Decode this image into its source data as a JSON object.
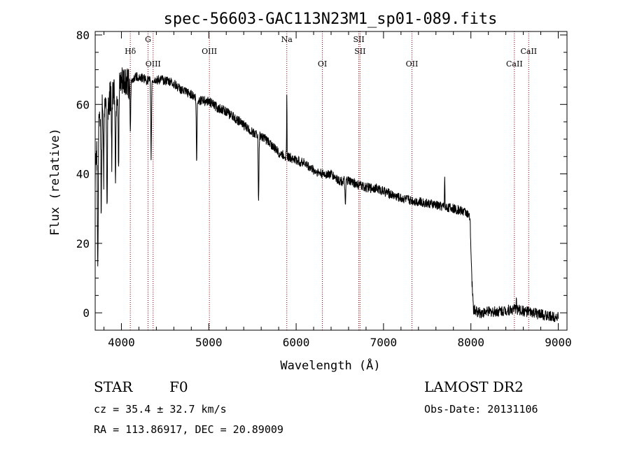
{
  "chart_data": {
    "type": "line",
    "title": "spec-56603-GAC113N23M1_sp01-089.fits",
    "xlabel": "Wavelength (Å)",
    "ylabel": "Flux (relative)",
    "xlim": [
      3700,
      9100
    ],
    "ylim": [
      -5,
      81
    ],
    "xticks": [
      4000,
      5000,
      6000,
      7000,
      8000,
      9000
    ],
    "yticks": [
      0,
      20,
      40,
      60,
      80
    ],
    "grid": false,
    "lines": [
      {
        "label": "Hδ",
        "wavelength": 4102,
        "row": 1
      },
      {
        "label": "G",
        "wavelength": 4305,
        "row": 0
      },
      {
        "label": "OIII",
        "wavelength": 4363,
        "row": 2
      },
      {
        "label": "OIII",
        "wavelength": 5007,
        "row": 1
      },
      {
        "label": "Na",
        "wavelength": 5893,
        "row": 0
      },
      {
        "label": "OI",
        "wavelength": 6300,
        "row": 2
      },
      {
        "label": "SII",
        "wavelength": 6717,
        "row": 0
      },
      {
        "label": "SII",
        "wavelength": 6731,
        "row": 1
      },
      {
        "label": "OII",
        "wavelength": 7325,
        "row": 2
      },
      {
        "label": "CaII",
        "wavelength": 8498,
        "row": 2
      },
      {
        "label": "CaII",
        "wavelength": 8662,
        "row": 1
      }
    ],
    "continuum": [
      [
        3700,
        40
      ],
      [
        3730,
        52
      ],
      [
        3760,
        58
      ],
      [
        3800,
        62
      ],
      [
        3850,
        60
      ],
      [
        3900,
        65
      ],
      [
        3950,
        63
      ],
      [
        4000,
        66
      ],
      [
        4050,
        67
      ],
      [
        4100,
        66
      ],
      [
        4150,
        68
      ],
      [
        4200,
        68
      ],
      [
        4300,
        67
      ],
      [
        4400,
        67
      ],
      [
        4500,
        67
      ],
      [
        4600,
        66
      ],
      [
        4700,
        64
      ],
      [
        4800,
        63
      ],
      [
        4900,
        61
      ],
      [
        5000,
        61
      ],
      [
        5100,
        59
      ],
      [
        5200,
        58
      ],
      [
        5300,
        56
      ],
      [
        5400,
        54
      ],
      [
        5500,
        52
      ],
      [
        5600,
        51
      ],
      [
        5700,
        49
      ],
      [
        5800,
        46
      ],
      [
        5900,
        45
      ],
      [
        6000,
        44
      ],
      [
        6100,
        43
      ],
      [
        6200,
        41
      ],
      [
        6300,
        40
      ],
      [
        6400,
        40
      ],
      [
        6500,
        38
      ],
      [
        6600,
        38
      ],
      [
        6700,
        37
      ],
      [
        6800,
        36
      ],
      [
        6900,
        36
      ],
      [
        7000,
        35
      ],
      [
        7200,
        33
      ],
      [
        7400,
        32
      ],
      [
        7600,
        31
      ],
      [
        7800,
        30
      ],
      [
        7950,
        29
      ],
      [
        7990,
        27
      ],
      [
        8010,
        10
      ],
      [
        8030,
        1
      ],
      [
        8100,
        0
      ],
      [
        8300,
        0.5
      ],
      [
        8500,
        1
      ],
      [
        8700,
        0
      ],
      [
        8900,
        -1
      ],
      [
        9000,
        -1
      ]
    ],
    "absorption": [
      {
        "x": 3730,
        "depth": 40
      },
      {
        "x": 3770,
        "depth": 30
      },
      {
        "x": 3798,
        "depth": 22
      },
      {
        "x": 3835,
        "depth": 30
      },
      {
        "x": 3889,
        "depth": 20
      },
      {
        "x": 3933,
        "depth": 25
      },
      {
        "x": 3968,
        "depth": 22
      },
      {
        "x": 4102,
        "depth": 14
      },
      {
        "x": 4340,
        "depth": 22
      },
      {
        "x": 4861,
        "depth": 18
      },
      {
        "x": 5570,
        "depth": 20
      },
      {
        "x": 6563,
        "depth": 8
      }
    ],
    "emission": [
      {
        "x": 5893,
        "height": 18
      },
      {
        "x": 7700,
        "height": 10
      },
      {
        "x": 8520,
        "height": 5
      }
    ],
    "noise": [
      {
        "range": [
          3700,
          4100
        ],
        "amplitude": 5
      },
      {
        "range": [
          4100,
          8000
        ],
        "amplitude": 1.4
      },
      {
        "range": [
          8000,
          9000
        ],
        "amplitude": 1.6
      }
    ]
  },
  "info": {
    "object_class": "STAR",
    "subclass": "F0",
    "survey": "LAMOST DR2",
    "redshift": "cz = 35.4 ± 32.7 km/s",
    "obs_date": "Obs-Date: 20131106",
    "coords": "RA = 113.86917, DEC =  20.89009"
  },
  "colors": {
    "axis": "#000000",
    "spectrum": "#000000",
    "line_markers": "#8b0000"
  }
}
